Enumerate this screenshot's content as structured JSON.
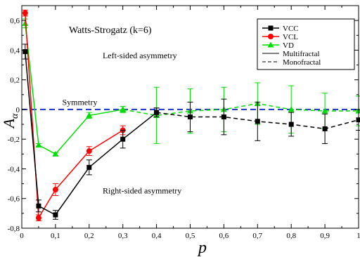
{
  "chart_data": {
    "type": "line",
    "title": "Watts-Strogatz (k=6)",
    "xlabel": "p",
    "ylabel": "A",
    "ylabel_sub": "α",
    "xlim": [
      0,
      1
    ],
    "ylim": [
      -0.8,
      0.7
    ],
    "x_ticks": [
      0,
      0.1,
      0.2,
      0.3,
      0.4,
      0.5,
      0.6,
      0.7,
      0.8,
      0.9,
      1
    ],
    "x_tick_labels": [
      "0",
      "0,1",
      "0,2",
      "0,3",
      "0,4",
      "0,5",
      "0,6",
      "0,7",
      "0,8",
      "0,9",
      "1"
    ],
    "y_ticks": [
      -0.8,
      -0.6,
      -0.4,
      -0.2,
      0,
      0.2,
      0.4,
      0.6
    ],
    "y_tick_labels": [
      "-0,8",
      "-0,6",
      "-0,4",
      "-0,2",
      "0",
      "0,2",
      "0,4",
      "0,6"
    ],
    "grid": false,
    "legend_position": "top-right",
    "legend_line_labels": [
      "Multifractal",
      "Monofractal"
    ],
    "reference_line": {
      "y": 0,
      "color": "#1a33cc"
    },
    "annotations": [
      {
        "text": "Left-sided asymmetry",
        "x": 0.24,
        "y": 0.345
      },
      {
        "text": "Symmetry",
        "x": 0.12,
        "y": 0.03
      },
      {
        "text": "Right-sided asymmetry",
        "x": 0.24,
        "y": -0.565
      }
    ],
    "series": [
      {
        "name": "VCC",
        "color": "#000000",
        "marker": "square",
        "multifractal": {
          "x": [
            0.01,
            0.05,
            0.1,
            0.2,
            0.3,
            0.4
          ],
          "y": [
            0.39,
            -0.65,
            -0.71,
            -0.39,
            -0.2,
            -0.02
          ],
          "err": [
            0.05,
            0.04,
            0.03,
            0.05,
            0.06,
            0.03
          ]
        },
        "monofractal": {
          "x": [
            0.4,
            0.5,
            0.6,
            0.7,
            0.8,
            0.9,
            1.0
          ],
          "y": [
            -0.02,
            -0.05,
            -0.05,
            -0.08,
            -0.1,
            -0.13,
            -0.07
          ],
          "err": [
            0.03,
            0.1,
            0.12,
            0.13,
            0.08,
            0.1,
            0.07
          ]
        }
      },
      {
        "name": "VCL",
        "color": "#ff0000",
        "marker": "circle",
        "multifractal": {
          "x": [
            0.01,
            0.05,
            0.1,
            0.2,
            0.3
          ],
          "y": [
            0.65,
            -0.73,
            -0.54,
            -0.28,
            -0.14
          ],
          "err": [
            0.02,
            0.02,
            0.04,
            0.03,
            0.03
          ]
        }
      },
      {
        "name": "VD",
        "color": "#00dd00",
        "marker": "triangle",
        "multifractal": {
          "x": [
            0.01,
            0.05,
            0.1,
            0.2,
            0.3
          ],
          "y": [
            0.58,
            -0.24,
            -0.3,
            -0.04,
            0.0
          ],
          "err": [
            0.03,
            0.01,
            0.01,
            0.02,
            0.02
          ]
        },
        "monofractal": {
          "x": [
            0.3,
            0.4,
            0.5,
            0.6,
            0.7,
            0.8,
            0.9,
            1.0
          ],
          "y": [
            0.0,
            -0.04,
            -0.01,
            0.0,
            0.04,
            0.0,
            -0.01,
            -0.01
          ],
          "err": [
            0.02,
            0.19,
            0.15,
            0.15,
            0.14,
            0.16,
            0.12,
            0.1
          ]
        }
      }
    ]
  }
}
